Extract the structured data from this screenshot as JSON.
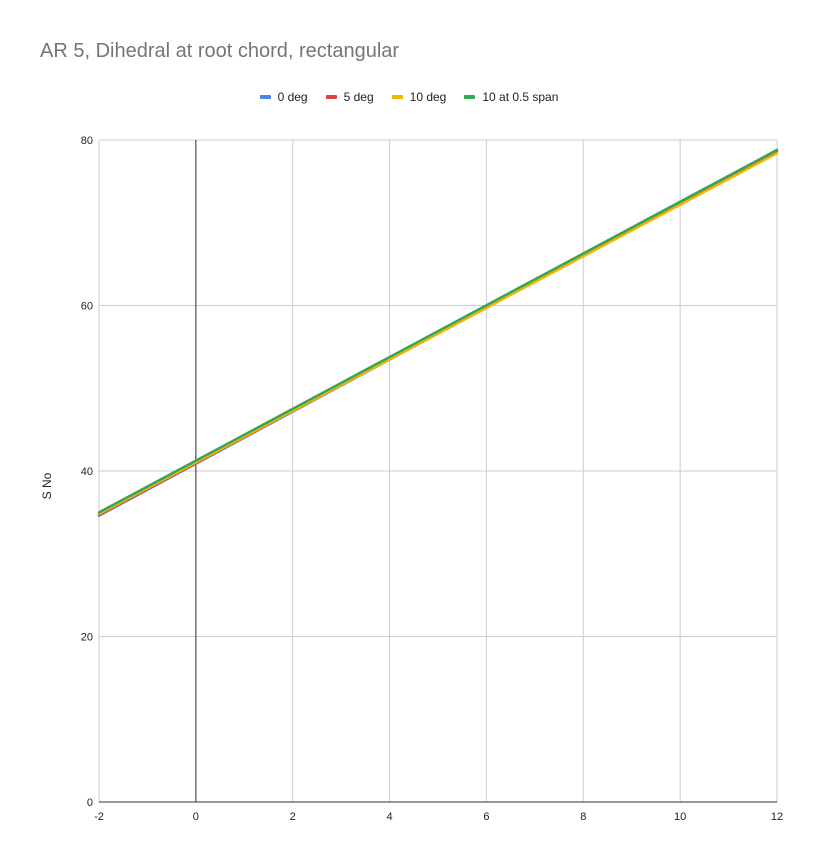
{
  "chart_data": {
    "type": "line",
    "title": "AR 5, Dihedral at root chord, rectangular",
    "xlabel": "",
    "ylabel": "S No",
    "xlim": [
      -2,
      12
    ],
    "ylim": [
      0,
      80
    ],
    "x_ticks": [
      -2,
      0,
      2,
      4,
      6,
      8,
      10,
      12
    ],
    "y_ticks": [
      0,
      20,
      40,
      60,
      80
    ],
    "grid": true,
    "legend_position": "top",
    "series": [
      {
        "name": "0 deg",
        "color": "#4a86e8",
        "x": [
          -2,
          12
        ],
        "y": [
          34.6,
          78.6
        ]
      },
      {
        "name": "5 deg",
        "color": "#db4437",
        "x": [
          -2,
          12
        ],
        "y": [
          34.7,
          78.6
        ]
      },
      {
        "name": "10 deg",
        "color": "#f4b400",
        "x": [
          -2,
          12
        ],
        "y": [
          34.8,
          78.4
        ]
      },
      {
        "name": "10 at 0.5 span",
        "color": "#34a853",
        "x": [
          -2,
          12
        ],
        "y": [
          35.0,
          78.8
        ]
      }
    ]
  }
}
